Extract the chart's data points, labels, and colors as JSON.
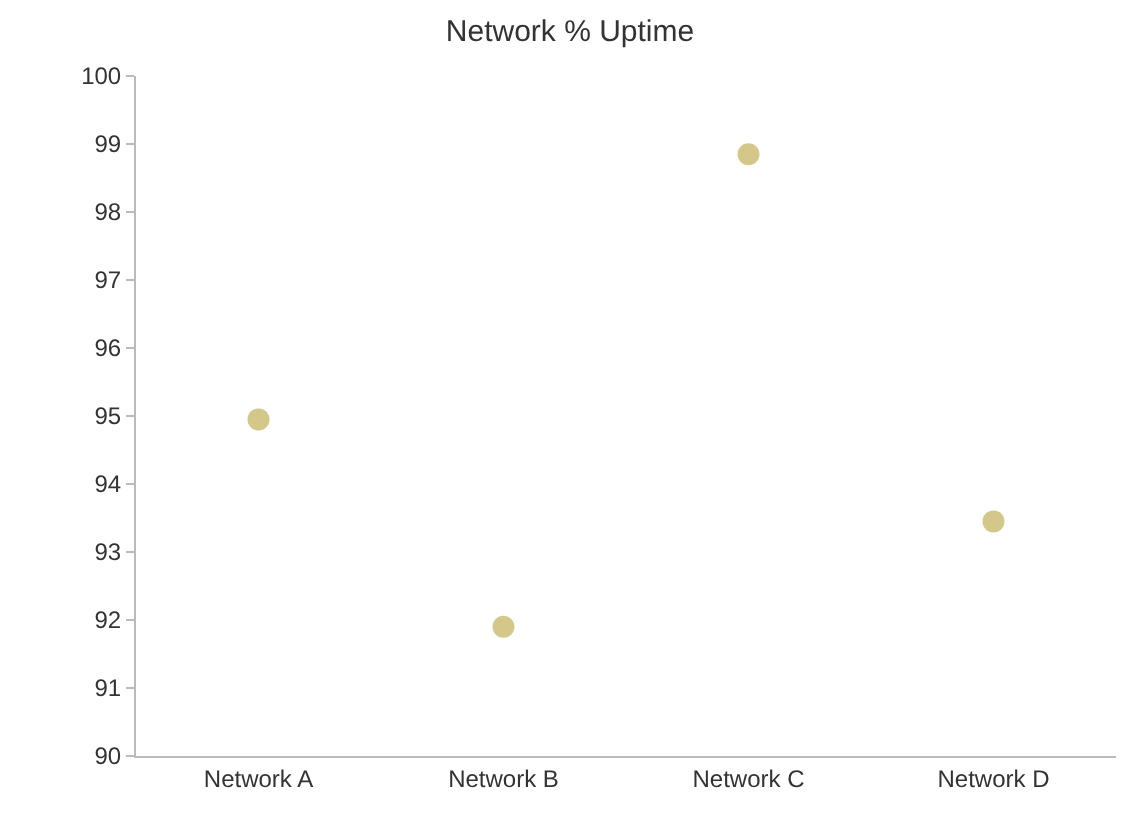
{
  "chart_data": {
    "type": "scatter",
    "title": "Network % Uptime",
    "categories": [
      "Network A",
      "Network B",
      "Network C",
      "Network D"
    ],
    "series": [
      {
        "color": "#d3c88a",
        "values": [
          94.95,
          91.9,
          98.85,
          93.45
        ]
      }
    ],
    "ylim": [
      90,
      100
    ],
    "yticks": [
      90,
      91,
      92,
      93,
      94,
      95,
      96,
      97,
      98,
      99,
      100
    ],
    "legend": false,
    "marker": "circle"
  }
}
